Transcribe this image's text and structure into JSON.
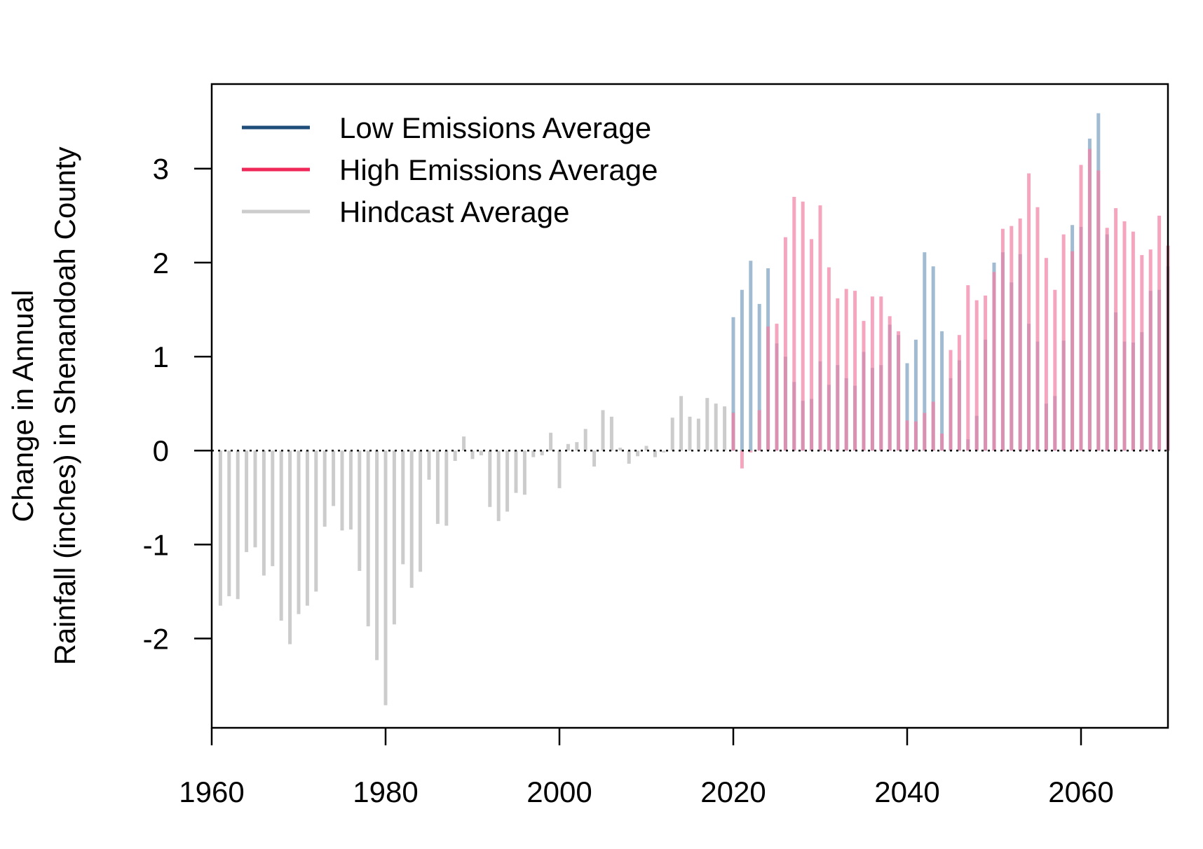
{
  "chart_data": {
    "type": "bar",
    "ylabel": [
      "Change in Annual",
      "Rainfall (inches) in Shenandoah County"
    ],
    "xlim": [
      1960,
      2070
    ],
    "ylim": [
      -2.95,
      3.9
    ],
    "x_ticks": [
      1960,
      1980,
      2000,
      2020,
      2040,
      2060
    ],
    "y_ticks": [
      -2,
      -1,
      0,
      1,
      2,
      3
    ],
    "zero_line": "dotted",
    "grid": false,
    "legend_position": "top-left",
    "legend": [
      {
        "label": "Low Emissions Average",
        "color": "#1f4e7a"
      },
      {
        "label": "High Emissions Average",
        "color": "#f0285a"
      },
      {
        "label": "Hindcast Average",
        "color": "#cccccc"
      }
    ],
    "series": [
      {
        "name": "Hindcast Average",
        "color": "#cccccc",
        "x": [
          1961,
          1962,
          1963,
          1964,
          1965,
          1966,
          1967,
          1968,
          1969,
          1970,
          1971,
          1972,
          1973,
          1974,
          1975,
          1976,
          1977,
          1978,
          1979,
          1980,
          1981,
          1982,
          1983,
          1984,
          1985,
          1986,
          1987,
          1988,
          1989,
          1990,
          1991,
          1992,
          1993,
          1994,
          1995,
          1996,
          1997,
          1998,
          1999,
          2000,
          2001,
          2002,
          2003,
          2004,
          2005,
          2006,
          2007,
          2008,
          2009,
          2010,
          2011,
          2012,
          2013,
          2014,
          2015,
          2016,
          2017,
          2018,
          2019,
          2020
        ],
        "values": [
          -1.65,
          -1.55,
          -1.58,
          -1.08,
          -1.03,
          -1.33,
          -1.23,
          -1.81,
          -2.06,
          -1.74,
          -1.65,
          -1.5,
          -0.81,
          -0.59,
          -0.85,
          -0.84,
          -1.28,
          -1.87,
          -2.23,
          -2.71,
          -1.85,
          -1.21,
          -1.46,
          -1.29,
          -0.31,
          -0.78,
          -0.8,
          -0.11,
          0.15,
          -0.09,
          -0.05,
          -0.6,
          -0.75,
          -0.65,
          -0.45,
          -0.47,
          -0.07,
          -0.05,
          0.19,
          -0.4,
          0.07,
          0.09,
          0.23,
          -0.17,
          0.43,
          0.36,
          0.03,
          -0.14,
          -0.06,
          0.05,
          -0.07,
          -0.02,
          0.35,
          0.58,
          0.36,
          0.34,
          0.56,
          0.5,
          0.47,
          0.41
        ]
      },
      {
        "name": "Low Emissions Average",
        "color": "#1f4e7a",
        "x": [
          2020,
          2021,
          2022,
          2023,
          2024,
          2025,
          2026,
          2027,
          2028,
          2029,
          2030,
          2031,
          2032,
          2033,
          2034,
          2035,
          2036,
          2037,
          2038,
          2039,
          2040,
          2041,
          2042,
          2043,
          2044,
          2045,
          2046,
          2047,
          2048,
          2049,
          2050,
          2051,
          2052,
          2053,
          2054,
          2055,
          2056,
          2057,
          2058,
          2059,
          2060,
          2061,
          2062,
          2063,
          2064,
          2065,
          2066,
          2067,
          2068,
          2069,
          2070
        ],
        "values": [
          1.42,
          1.71,
          2.02,
          1.56,
          1.94,
          1.14,
          1.0,
          0.73,
          0.53,
          0.55,
          0.95,
          0.7,
          0.91,
          0.77,
          0.69,
          1.05,
          0.88,
          0.91,
          1.34,
          1.23,
          0.93,
          1.18,
          2.11,
          1.96,
          1.27,
          0.77,
          0.96,
          0.12,
          0.37,
          1.18,
          2.0,
          2.11,
          1.79,
          2.09,
          1.35,
          1.16,
          0.5,
          0.58,
          1.17,
          2.4,
          2.38,
          3.32,
          3.59,
          2.3,
          1.47,
          1.16,
          1.15,
          1.26,
          1.7,
          1.71,
          1.96
        ]
      },
      {
        "name": "High Emissions Average",
        "color": "#f0285a",
        "x": [
          2020,
          2021,
          2022,
          2023,
          2024,
          2025,
          2026,
          2027,
          2028,
          2029,
          2030,
          2031,
          2032,
          2033,
          2034,
          2035,
          2036,
          2037,
          2038,
          2039,
          2040,
          2041,
          2042,
          2043,
          2044,
          2045,
          2046,
          2047,
          2048,
          2049,
          2050,
          2051,
          2052,
          2053,
          2054,
          2055,
          2056,
          2057,
          2058,
          2059,
          2060,
          2061,
          2062,
          2063,
          2064,
          2065,
          2066,
          2067,
          2068,
          2069,
          2070
        ],
        "values": [
          0.4,
          -0.19,
          -0.02,
          0.43,
          1.32,
          1.35,
          2.27,
          2.7,
          2.65,
          2.25,
          2.61,
          1.95,
          1.62,
          1.72,
          1.7,
          1.38,
          1.64,
          1.64,
          1.43,
          1.27,
          0.32,
          0.31,
          0.4,
          0.52,
          0.18,
          1.07,
          1.23,
          1.76,
          1.6,
          1.65,
          1.9,
          2.36,
          2.39,
          2.47,
          2.95,
          2.59,
          2.05,
          1.71,
          2.3,
          2.12,
          3.04,
          3.21,
          2.98,
          2.37,
          2.58,
          2.44,
          2.33,
          2.08,
          2.14,
          2.5,
          2.18
        ]
      }
    ]
  }
}
